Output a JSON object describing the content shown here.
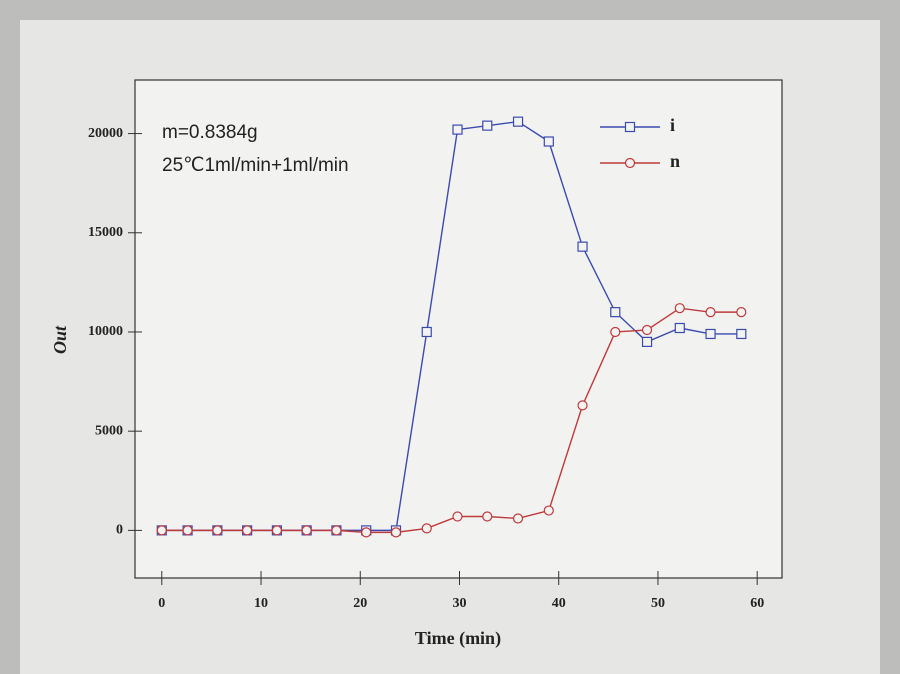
{
  "chart_data": {
    "type": "line",
    "annotations": [
      "m=0.8384g",
      "25℃1ml/min+1ml/min"
    ],
    "x_label": "Time (min)",
    "y_label": "Out",
    "x": [
      0,
      2.6,
      5.6,
      8.6,
      11.6,
      14.6,
      17.6,
      20.6,
      23.6,
      26.7,
      29.8,
      32.8,
      35.9,
      39,
      42.4,
      45.7,
      48.9,
      52.2,
      55.3,
      58.4
    ],
    "series": [
      {
        "name": "i",
        "color": "#3a4bb0",
        "marker": "square",
        "values": [
          0,
          0,
          0,
          0,
          0,
          0,
          0,
          0,
          0,
          10000,
          20200,
          20400,
          20600,
          19600,
          14300,
          11000,
          9500,
          10200,
          9900,
          9900
        ]
      },
      {
        "name": "n",
        "color": "#c0393b",
        "marker": "circle",
        "values": [
          0,
          0,
          0,
          0,
          0,
          0,
          0,
          -100,
          -100,
          100,
          700,
          700,
          600,
          1000,
          6300,
          10000,
          10100,
          11200,
          11000,
          11000
        ]
      }
    ],
    "xlim": [
      -2.7,
      62.5
    ],
    "ylim": [
      -2400,
      22700
    ],
    "xticks": [
      0,
      10,
      20,
      30,
      40,
      50,
      60
    ],
    "yticks": [
      0,
      5000,
      10000,
      15000,
      20000
    ],
    "legend": "upper right"
  }
}
